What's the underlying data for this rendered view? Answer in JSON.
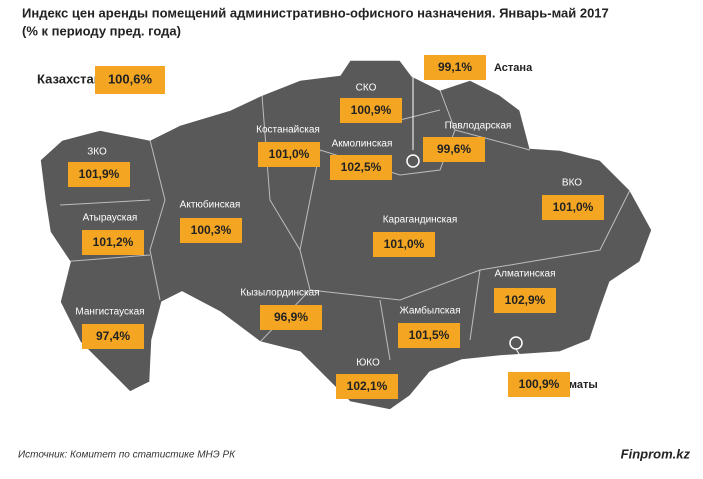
{
  "header": {
    "title": "Индекс цен аренды помещений административно-офисного назначения. Январь-май 2017",
    "subtitle": "(%  к периоду пред. года)"
  },
  "country": {
    "name": "Казахстан",
    "value": "100,6%"
  },
  "regions": [
    {
      "name": "ЗКО",
      "value": "101,9%"
    },
    {
      "name": "Атырауская",
      "value": "101,2%"
    },
    {
      "name": "Мангистауская",
      "value": "97,4%"
    },
    {
      "name": "Актюбинская",
      "value": "100,3%"
    },
    {
      "name": "Костанайская",
      "value": "101,0%"
    },
    {
      "name": "СКО",
      "value": "100,9%"
    },
    {
      "name": "Акмолинская",
      "value": "102,5%"
    },
    {
      "name": "Астана",
      "value": "99,1%"
    },
    {
      "name": "Павлодарская",
      "value": "99,6%"
    },
    {
      "name": "ВКО",
      "value": "101,0%"
    },
    {
      "name": "Карагандинская",
      "value": "101,0%"
    },
    {
      "name": "Алматинская",
      "value": "102,9%"
    },
    {
      "name": "Алматы",
      "value": "100,9%"
    },
    {
      "name": "Кызылординская",
      "value": "96,9%"
    },
    {
      "name": "Жамбылская",
      "value": "101,5%"
    },
    {
      "name": "ЮКО",
      "value": "102,1%"
    }
  ],
  "footer": {
    "source": "Источник:  Комитет по статистике МНЭ РК",
    "brand": "Finprom.kz"
  }
}
